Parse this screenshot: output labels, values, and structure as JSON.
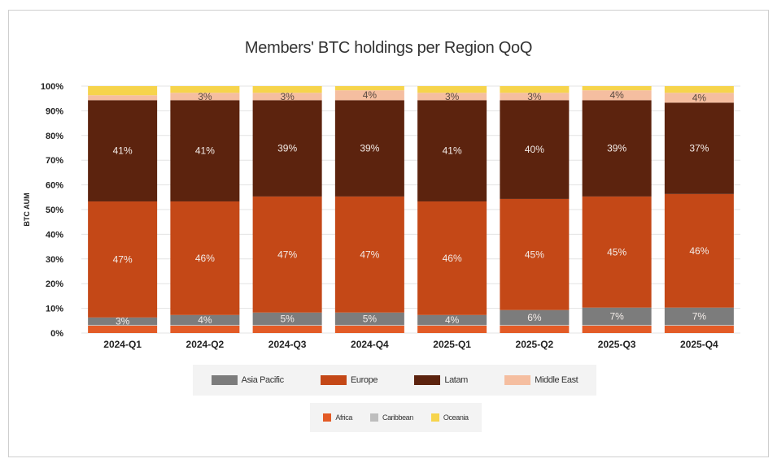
{
  "chart_data": {
    "type": "bar",
    "stacked": true,
    "title": "Members' BTC holdings per Region QoQ",
    "ylabel": "BTC AUM",
    "xlabel": "",
    "ylim": [
      0,
      100
    ],
    "yticks": [
      "0%",
      "10%",
      "20%",
      "30%",
      "40%",
      "50%",
      "60%",
      "70%",
      "80%",
      "90%",
      "100%"
    ],
    "grid": true,
    "categories": [
      "2024-Q1",
      "2024-Q2",
      "2024-Q3",
      "2024-Q4",
      "2025-Q1",
      "2025-Q2",
      "2025-Q3",
      "2025-Q4"
    ],
    "series": [
      {
        "name": "Africa",
        "color": "#e35b26",
        "values": [
          3,
          3,
          3,
          3,
          3,
          3,
          3,
          3
        ],
        "labels": [
          "",
          "",
          "",
          "",
          "",
          "",
          "",
          ""
        ]
      },
      {
        "name": "Caribbean",
        "color": "#bdbdbd",
        "values": [
          0.3,
          0.3,
          0.3,
          0.3,
          0.3,
          0.3,
          0.3,
          0.3
        ],
        "labels": [
          "",
          "",
          "",
          "",
          "",
          "",
          "",
          ""
        ]
      },
      {
        "name": "Asia Pacific",
        "color": "#7c7c7c",
        "values": [
          3,
          4,
          5,
          5,
          4,
          6,
          7,
          7
        ],
        "labels": [
          "3%",
          "4%",
          "5%",
          "5%",
          "4%",
          "6%",
          "7%",
          "7%"
        ]
      },
      {
        "name": "Europe",
        "color": "#c44817",
        "values": [
          47,
          46,
          47,
          47,
          46,
          45,
          45,
          46
        ],
        "labels": [
          "47%",
          "46%",
          "47%",
          "47%",
          "46%",
          "45%",
          "45%",
          "46%"
        ]
      },
      {
        "name": "Latam",
        "color": "#5c230e",
        "values": [
          41,
          41,
          39,
          39,
          41,
          40,
          39,
          37
        ],
        "labels": [
          "41%",
          "41%",
          "39%",
          "39%",
          "41%",
          "40%",
          "39%",
          "37%"
        ]
      },
      {
        "name": "Middle East",
        "color": "#f5bea0",
        "values": [
          2,
          3,
          3,
          4,
          3,
          3,
          4,
          4
        ],
        "labels": [
          "",
          "3%",
          "3%",
          "4%",
          "3%",
          "3%",
          "4%",
          "4%"
        ]
      },
      {
        "name": "Oceania",
        "color": "#f6d44c",
        "values": [
          3.7,
          2.7,
          2.7,
          1.7,
          2.7,
          2.7,
          1.7,
          2.7
        ],
        "labels": [
          "",
          "",
          "",
          "",
          "",
          "",
          "",
          ""
        ]
      }
    ],
    "legend": {
      "row1": [
        "Asia Pacific",
        "Europe",
        "Latam",
        "Middle East"
      ],
      "row2": [
        "Africa",
        "Caribbean",
        "Oceania"
      ],
      "placement": "bottom"
    }
  }
}
